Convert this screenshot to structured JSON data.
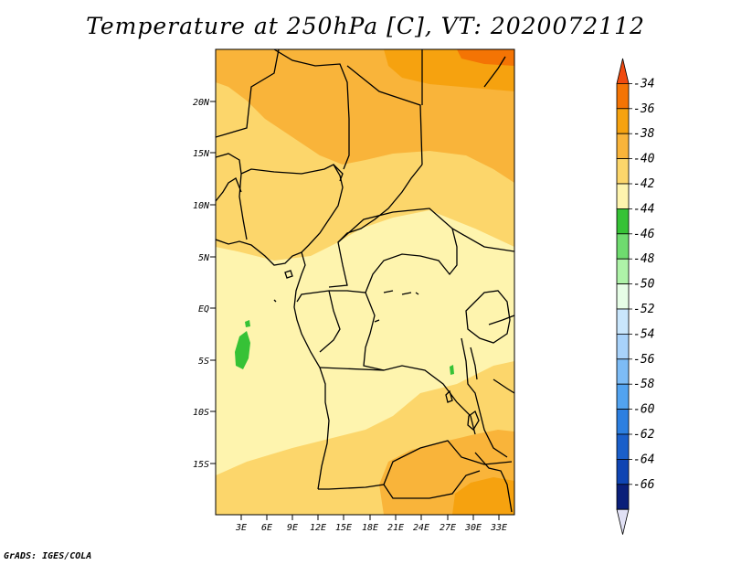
{
  "title": "Temperature at 250hPa [C], VT: 2020072112",
  "footer": "GrADS: IGES/COLA",
  "map": {
    "lat_labels": [
      "20N",
      "15N",
      "10N",
      "5N",
      "EQ",
      "5S",
      "10S",
      "15S"
    ],
    "lon_labels": [
      "3E",
      "6E",
      "9E",
      "12E",
      "15E",
      "18E",
      "21E",
      "24E",
      "27E",
      "30E",
      "33E"
    ]
  },
  "colorbar": {
    "labels": [
      "-34",
      "-36",
      "-38",
      "-40",
      "-42",
      "-44",
      "-46",
      "-48",
      "-50",
      "-52",
      "-54",
      "-56",
      "-58",
      "-60",
      "-62",
      "-64",
      "-66"
    ],
    "colors": [
      "#f04a0f",
      "#f47404",
      "#f6a20f",
      "#f9b43a",
      "#fcd66b",
      "#fef4ae",
      "#36c236",
      "#6fdb6f",
      "#aef2a8",
      "#e6fde6",
      "#c9e6fc",
      "#a8d2fa",
      "#7dbcf6",
      "#52a3f0",
      "#2c7fe0",
      "#1a5fca",
      "#0f45b3",
      "#0a1f7a",
      "#e1e1f5"
    ]
  }
}
